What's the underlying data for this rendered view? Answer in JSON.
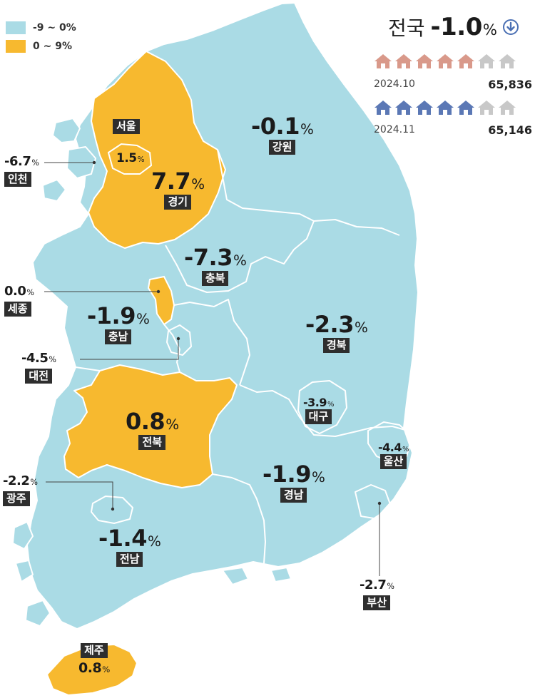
{
  "legend": [
    {
      "label": "-9 ~ 0%",
      "color": "#aadbe5"
    },
    {
      "label": "0 ~ 9%",
      "color": "#f7b92f"
    }
  ],
  "national": {
    "label": "전국",
    "value": "-1.0",
    "unit": "%",
    "trend_icon": "down-arrow-circle-icon",
    "rows": [
      {
        "date": "2024.10",
        "count": "65,836",
        "filled_houses": 5,
        "total_houses": 7,
        "house_color": "#d9998a"
      },
      {
        "date": "2024.11",
        "count": "65,146",
        "filled_houses": 5,
        "total_houses": 7,
        "house_color": "#5b78b5"
      }
    ],
    "empty_house_color": "#c8c8c8"
  },
  "regions": {
    "seoul": {
      "name": "서울",
      "value": "1.5",
      "unit": "%",
      "category": "positive"
    },
    "gyeonggi": {
      "name": "경기",
      "value": "7.7",
      "unit": "%",
      "category": "positive"
    },
    "incheon": {
      "name": "인천",
      "value": "-6.7",
      "unit": "%",
      "category": "negative"
    },
    "gangwon": {
      "name": "강원",
      "value": "-0.1",
      "unit": "%",
      "category": "negative"
    },
    "chungbuk": {
      "name": "충북",
      "value": "-7.3",
      "unit": "%",
      "category": "negative"
    },
    "sejong": {
      "name": "세종",
      "value": "0.0",
      "unit": "%",
      "category": "positive"
    },
    "chungnam": {
      "name": "충남",
      "value": "-1.9",
      "unit": "%",
      "category": "negative"
    },
    "daejeon": {
      "name": "대전",
      "value": "-4.5",
      "unit": "%",
      "category": "negative"
    },
    "gyeongbuk": {
      "name": "경북",
      "value": "-2.3",
      "unit": "%",
      "category": "negative"
    },
    "daegu": {
      "name": "대구",
      "value": "-3.9",
      "unit": "%",
      "category": "negative"
    },
    "jeonbuk": {
      "name": "전북",
      "value": "0.8",
      "unit": "%",
      "category": "positive"
    },
    "ulsan": {
      "name": "울산",
      "value": "-4.4",
      "unit": "%",
      "category": "negative"
    },
    "gwangju": {
      "name": "광주",
      "value": "-2.2",
      "unit": "%",
      "category": "negative"
    },
    "gyeongnam": {
      "name": "경남",
      "value": "-1.9",
      "unit": "%",
      "category": "negative"
    },
    "jeonnam": {
      "name": "전남",
      "value": "-1.4",
      "unit": "%",
      "category": "negative"
    },
    "busan": {
      "name": "부산",
      "value": "-2.7",
      "unit": "%",
      "category": "negative"
    },
    "jeju": {
      "name": "제주",
      "value": "0.8",
      "unit": "%",
      "category": "positive"
    }
  }
}
